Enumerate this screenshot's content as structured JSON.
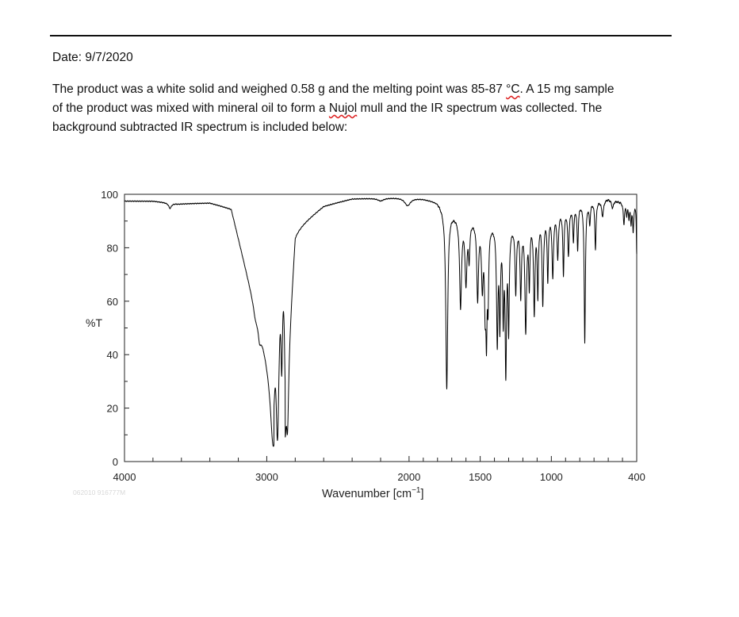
{
  "document": {
    "date_line": "Date: 9/7/2020",
    "paragraph": {
      "line1_a": "The product was a white solid and weighed 0.58 g and the melting point was 85-87 ",
      "line1_unit": "°C",
      "line1_b": ". A 15 mg sample",
      "line2_a": "of the product was mixed with mineral oil to form a ",
      "line2_word": "Nujol",
      "line2_b": " mull and the IR spectrum was collected. The",
      "line3": "background subtracted IR spectrum is included below:"
    },
    "watermark": "062010 916777M"
  },
  "chart_data": {
    "type": "line",
    "title": "",
    "xlabel": "Wavenumber [cm",
    "xlabel_sup": "−1",
    "xlabel_close": "]",
    "ylabel": "%T",
    "xlim": [
      4000,
      400
    ],
    "ylim": [
      0,
      100
    ],
    "x_ticks": [
      4000,
      3000,
      2000,
      1500,
      1000,
      400
    ],
    "y_ticks": [
      0,
      20,
      40,
      60,
      80,
      100
    ],
    "grid": false,
    "series": [
      {
        "color": "#000000",
        "baseline": [
          [
            4000,
            97.5
          ],
          [
            3800,
            97.5
          ],
          [
            3620,
            96.5
          ],
          [
            3400,
            97
          ],
          [
            3250,
            95
          ],
          [
            2950,
            30
          ],
          [
            2870,
            30
          ],
          [
            2800,
            88
          ],
          [
            2600,
            96
          ],
          [
            2400,
            98.5
          ],
          [
            2000,
            99
          ],
          [
            1900,
            98.5
          ],
          [
            1800,
            97.5
          ],
          [
            1750,
            95
          ],
          [
            1650,
            92
          ],
          [
            1450,
            90
          ],
          [
            1300,
            89
          ],
          [
            1000,
            93
          ],
          [
            800,
            97
          ],
          [
            600,
            98.5
          ],
          [
            420,
            96
          ],
          [
            400,
            97
          ]
        ],
        "peaks": [
          {
            "x": 3680,
            "y": 96,
            "w": 12
          },
          {
            "x": 3080,
            "y": 93,
            "w": 15
          },
          {
            "x": 3050,
            "y": 88,
            "w": 12
          },
          {
            "x": 2955,
            "y": 22,
            "w": 20
          },
          {
            "x": 2925,
            "y": 11,
            "w": 14
          },
          {
            "x": 2895,
            "y": 46,
            "w": 7
          },
          {
            "x": 2870,
            "y": 42,
            "w": 8
          },
          {
            "x": 2855,
            "y": 29,
            "w": 9
          },
          {
            "x": 2200,
            "y": 97,
            "w": 25
          },
          {
            "x": 2010,
            "y": 95,
            "w": 25
          },
          {
            "x": 1735,
            "y": 28,
            "w": 8
          },
          {
            "x": 1638,
            "y": 62,
            "w": 8
          },
          {
            "x": 1600,
            "y": 72,
            "w": 8
          },
          {
            "x": 1578,
            "y": 83,
            "w": 6
          },
          {
            "x": 1518,
            "y": 66,
            "w": 7
          },
          {
            "x": 1485,
            "y": 72,
            "w": 7
          },
          {
            "x": 1465,
            "y": 64,
            "w": 6
          },
          {
            "x": 1456,
            "y": 53,
            "w": 5
          },
          {
            "x": 1445,
            "y": 66,
            "w": 5
          },
          {
            "x": 1380,
            "y": 48,
            "w": 6
          },
          {
            "x": 1362,
            "y": 56,
            "w": 5
          },
          {
            "x": 1338,
            "y": 60,
            "w": 5
          },
          {
            "x": 1320,
            "y": 36,
            "w": 6
          },
          {
            "x": 1300,
            "y": 55,
            "w": 5
          },
          {
            "x": 1250,
            "y": 70,
            "w": 6
          },
          {
            "x": 1215,
            "y": 68,
            "w": 6
          },
          {
            "x": 1180,
            "y": 53,
            "w": 7
          },
          {
            "x": 1155,
            "y": 72,
            "w": 5
          },
          {
            "x": 1120,
            "y": 60,
            "w": 6
          },
          {
            "x": 1095,
            "y": 67,
            "w": 5
          },
          {
            "x": 1060,
            "y": 63,
            "w": 6
          },
          {
            "x": 1025,
            "y": 72,
            "w": 5
          },
          {
            "x": 990,
            "y": 73,
            "w": 6
          },
          {
            "x": 955,
            "y": 80,
            "w": 6
          },
          {
            "x": 915,
            "y": 73,
            "w": 5
          },
          {
            "x": 880,
            "y": 80,
            "w": 6
          },
          {
            "x": 845,
            "y": 85,
            "w": 5
          },
          {
            "x": 815,
            "y": 81,
            "w": 5
          },
          {
            "x": 765,
            "y": 45,
            "w": 5
          },
          {
            "x": 730,
            "y": 90,
            "w": 5
          },
          {
            "x": 690,
            "y": 80,
            "w": 5
          },
          {
            "x": 640,
            "y": 92,
            "w": 8
          },
          {
            "x": 570,
            "y": 95,
            "w": 8
          },
          {
            "x": 490,
            "y": 90,
            "w": 5
          },
          {
            "x": 470,
            "y": 94,
            "w": 4
          },
          {
            "x": 455,
            "y": 93,
            "w": 4
          },
          {
            "x": 440,
            "y": 91,
            "w": 4
          },
          {
            "x": 425,
            "y": 88,
            "w": 4
          },
          {
            "x": 400,
            "y": 79,
            "w": 3
          }
        ]
      }
    ]
  }
}
